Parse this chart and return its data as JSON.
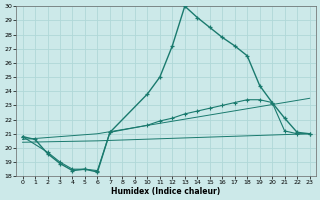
{
  "xlabel": "Humidex (Indice chaleur)",
  "bg_color": "#cce9e9",
  "grid_color": "#b0d8d8",
  "line_color": "#1a7a6e",
  "xlim": [
    -0.5,
    23.5
  ],
  "ylim": [
    18,
    30
  ],
  "xticks": [
    0,
    1,
    2,
    3,
    4,
    5,
    6,
    7,
    8,
    9,
    10,
    11,
    12,
    13,
    14,
    15,
    16,
    17,
    18,
    19,
    20,
    21,
    22,
    23
  ],
  "yticks": [
    18,
    19,
    20,
    21,
    22,
    23,
    24,
    25,
    26,
    27,
    28,
    29,
    30
  ],
  "curve1_x": [
    0,
    1,
    2,
    3,
    4,
    5,
    6,
    7,
    10,
    11,
    12,
    13,
    14,
    15,
    16,
    17,
    18,
    19,
    20,
    21,
    22,
    23
  ],
  "curve1_y": [
    20.8,
    20.6,
    19.6,
    18.9,
    18.4,
    18.5,
    18.3,
    21.1,
    23.8,
    25.0,
    27.2,
    30.0,
    29.2,
    28.5,
    27.8,
    27.2,
    26.5,
    24.4,
    23.2,
    22.1,
    21.1,
    21.0
  ],
  "curve2_x": [
    0,
    2,
    3,
    4,
    5,
    6,
    7,
    10,
    11,
    12,
    13,
    14,
    15,
    16,
    17,
    18,
    19,
    20,
    21,
    22,
    23
  ],
  "curve2_y": [
    20.8,
    19.7,
    19.0,
    18.5,
    18.5,
    18.4,
    21.1,
    21.6,
    21.9,
    22.1,
    22.4,
    22.6,
    22.8,
    23.0,
    23.2,
    23.4,
    23.4,
    23.2,
    21.2,
    21.0,
    21.0
  ],
  "line3_x": [
    0,
    6,
    23
  ],
  "line3_y": [
    20.6,
    21.0,
    23.5
  ],
  "line4_x": [
    0,
    6,
    23
  ],
  "line4_y": [
    20.4,
    20.5,
    21.0
  ]
}
